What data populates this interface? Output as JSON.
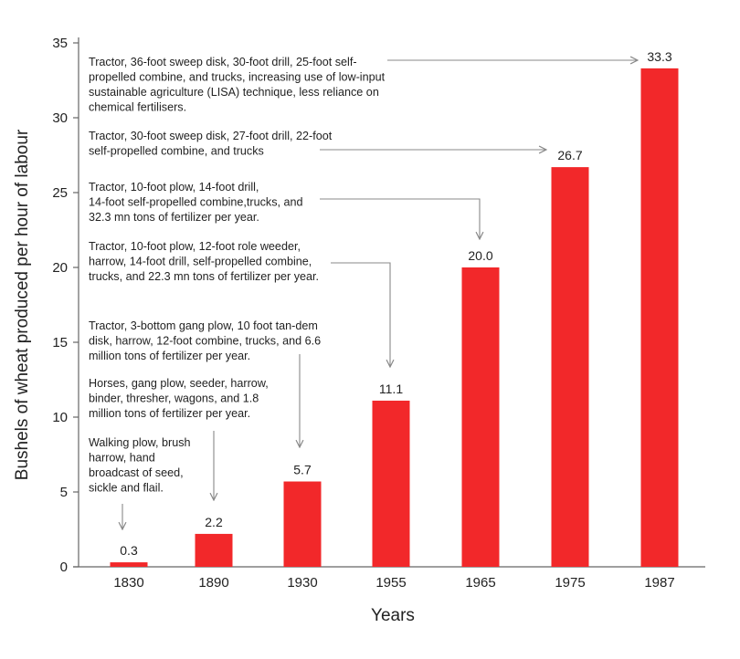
{
  "chart_data": {
    "type": "bar",
    "title": "",
    "xlabel": "Years",
    "ylabel": "Bushels of wheat produced per hour of labour",
    "ylim": [
      0,
      35
    ],
    "yticks": [
      0,
      5,
      10,
      15,
      20,
      25,
      30,
      35
    ],
    "grid": false,
    "bar_color": "#f2282a",
    "categories": [
      "1830",
      "1890",
      "1930",
      "1955",
      "1965",
      "1975",
      "1987"
    ],
    "values": [
      0.3,
      2.2,
      5.7,
      11.1,
      20.0,
      26.7,
      33.3
    ],
    "value_labels": [
      "0.3",
      "2.2",
      "5.7",
      "11.1",
      "20.0",
      "26.7",
      "33.3"
    ],
    "annotations": [
      {
        "category": "1830",
        "lines": [
          "Walking plow, brush",
          "harrow, hand",
          "broadcast of seed,",
          "sickle and flail."
        ]
      },
      {
        "category": "1890",
        "lines": [
          "Horses, gang plow, seeder, harrow,",
          "binder, thresher, wagons, and 1.8",
          "million tons of fertilizer per year."
        ]
      },
      {
        "category": "1930",
        "lines": [
          "Tractor, 3-bottom gang plow, 10 foot tan-dem",
          "disk, harrow, 12-foot combine, trucks, and 6.6",
          "million tons of fertilizer per year."
        ]
      },
      {
        "category": "1955",
        "lines": [
          "Tractor, 10-foot plow, 12-foot role weeder,",
          "harrow, 14-foot drill, self-propelled combine,",
          "trucks, and 22.3 mn tons of fertilizer per year."
        ]
      },
      {
        "category": "1965",
        "lines": [
          "Tractor, 10-foot plow, 14-foot drill,",
          "14-foot self-propelled combine,trucks, and",
          "32.3 mn tons of fertilizer per year."
        ]
      },
      {
        "category": "1975",
        "lines": [
          "Tractor, 30-foot sweep disk, 27-foot drill, 22-foot",
          "self-propelled combine, and trucks"
        ]
      },
      {
        "category": "1987",
        "lines": [
          "Tractor, 36-foot sweep disk, 30-foot drill, 25-foot self-",
          "propelled combine, and trucks, increasing use of low-input",
          "sustainable agriculture (LISA) technique, less reliance on",
          "chemical fertilisers."
        ]
      }
    ]
  }
}
